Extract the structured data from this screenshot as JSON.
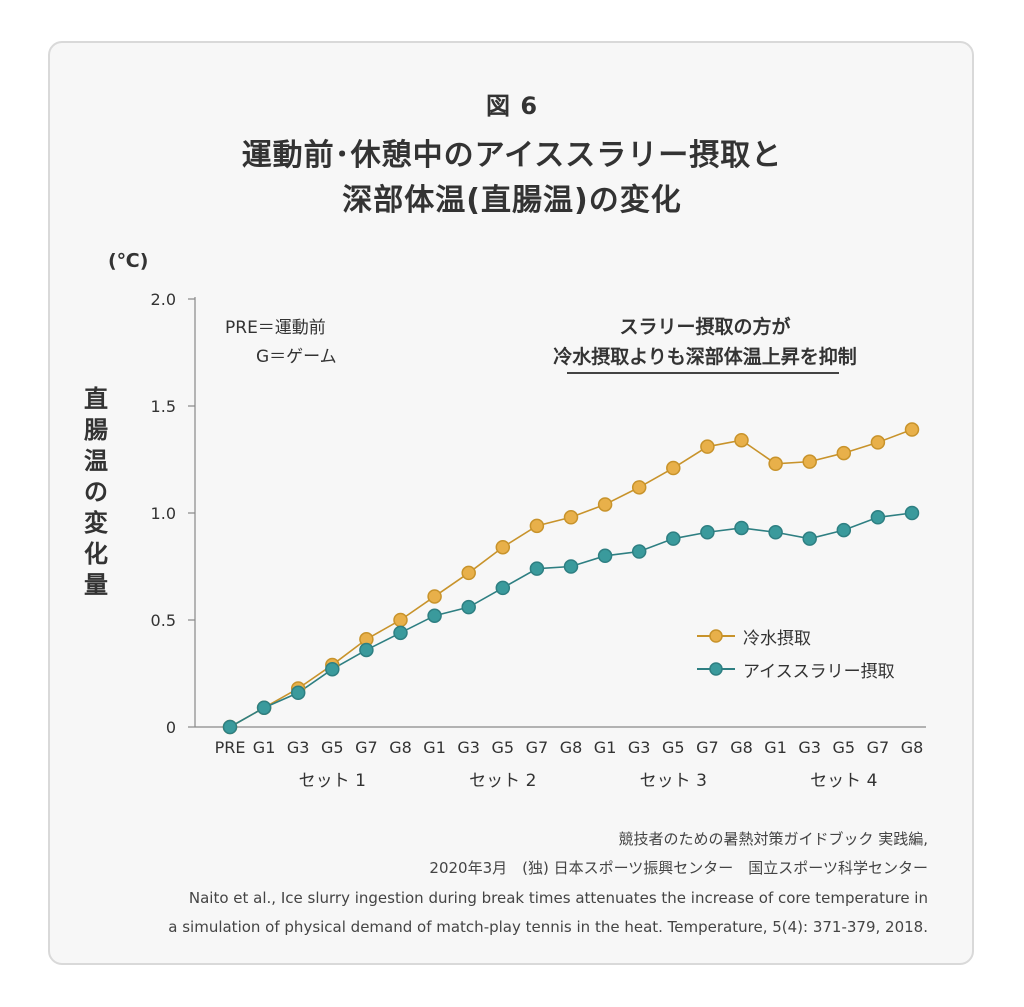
{
  "figure_label": "図 6",
  "title_line1": "運動前･休憩中のアイススラリー摂取と",
  "title_line2": "深部体温(直腸温)の変化",
  "unit": "(℃)",
  "ylabel_chars": [
    "直",
    "腸",
    "温",
    "の",
    "変",
    "化",
    "量"
  ],
  "note_pre": "PRE＝運動前",
  "note_g": "G＝ゲーム",
  "annotation_line1": "スラリー摂取の方が",
  "annotation_line2": "冷水摂取よりも深部体温上昇を抑制",
  "legend": [
    {
      "name": "冷水摂取",
      "color": "#e8b04a",
      "stroke": "#c8932b"
    },
    {
      "name": "アイススラリー摂取",
      "color": "#3a9a9c",
      "stroke": "#2e7f82"
    }
  ],
  "source_line1": "競技者のための暑熱対策ガイドブック 実践編,",
  "source_line2": "2020年3月　(独) 日本スポーツ振興センター　国立スポーツ科学センター",
  "source_line3": "Naito et al., Ice slurry ingestion during break times attenuates the increase of core temperature in",
  "source_line4": "a simulation of physical demand of match-play tennis in the heat. Temperature, 5(4): 371-379, 2018.",
  "chart_data": {
    "type": "line",
    "categories": [
      "PRE",
      "G1",
      "G3",
      "G5",
      "G7",
      "G8",
      "G1",
      "G3",
      "G5",
      "G7",
      "G8",
      "G1",
      "G3",
      "G5",
      "G7",
      "G8",
      "G1",
      "G3",
      "G5",
      "G7",
      "G8"
    ],
    "set_labels": [
      {
        "label": "セット 1",
        "from": 1,
        "to": 5
      },
      {
        "label": "セット 2",
        "from": 6,
        "to": 10
      },
      {
        "label": "セット 3",
        "from": 11,
        "to": 15
      },
      {
        "label": "セット 4",
        "from": 16,
        "to": 20
      }
    ],
    "ylim": [
      0,
      2.0
    ],
    "yticks": [
      0,
      0.5,
      1.0,
      1.5,
      2.0
    ],
    "ytick_labels": [
      "0",
      "0.5",
      "1.0",
      "1.5",
      "2.0"
    ],
    "series": [
      {
        "name": "冷水摂取",
        "values": [
          0.0,
          0.09,
          0.18,
          0.29,
          0.41,
          0.5,
          0.61,
          0.72,
          0.84,
          0.94,
          0.98,
          1.04,
          1.12,
          1.21,
          1.31,
          1.34,
          1.23,
          1.24,
          1.28,
          1.33,
          1.39
        ]
      },
      {
        "name": "アイススラリー摂取",
        "values": [
          0.0,
          0.09,
          0.16,
          0.27,
          0.36,
          0.44,
          0.52,
          0.56,
          0.65,
          0.74,
          0.75,
          0.8,
          0.82,
          0.88,
          0.91,
          0.93,
          0.91,
          0.88,
          0.92,
          0.98,
          1.0
        ]
      }
    ]
  }
}
